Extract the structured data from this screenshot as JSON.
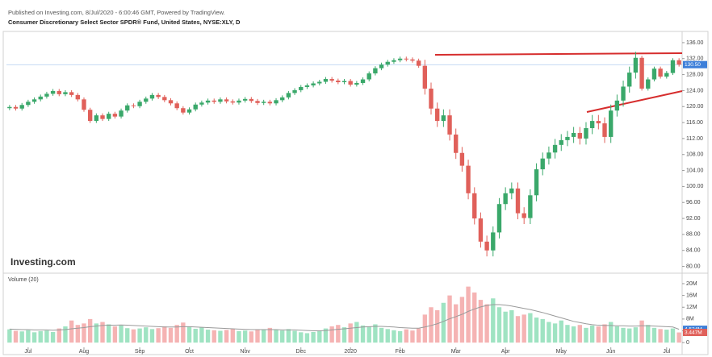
{
  "header": "Published on Investing.com, 8/Jul/2020 - 6:00:46 GMT, Powered by TradingView.",
  "logo": "Investing.com",
  "chart_data": [
    {
      "type": "candlestick",
      "title": "Consumer Discretionary Select Sector SPDR® Fund, United States, NYSE:XLY, D",
      "categories": [
        null,
        null,
        null,
        "Jul",
        null,
        null,
        null,
        null,
        null,
        null,
        null,
        null,
        "Aug",
        null,
        null,
        null,
        null,
        null,
        null,
        null,
        null,
        "Sep",
        null,
        null,
        null,
        null,
        null,
        null,
        null,
        "Oct",
        null,
        null,
        null,
        null,
        null,
        null,
        null,
        null,
        "Nov",
        null,
        null,
        null,
        null,
        null,
        null,
        null,
        null,
        "Dec",
        null,
        null,
        null,
        null,
        null,
        null,
        null,
        "2020",
        null,
        null,
        null,
        null,
        null,
        null,
        null,
        "Feb",
        null,
        null,
        null,
        null,
        null,
        null,
        null,
        null,
        "Mar",
        null,
        null,
        null,
        null,
        null,
        null,
        null,
        "Apr",
        null,
        null,
        null,
        null,
        null,
        null,
        null,
        null,
        "May",
        null,
        null,
        null,
        null,
        null,
        null,
        null,
        "Jun",
        null,
        null,
        null,
        null,
        null,
        null,
        null,
        null,
        "Jul",
        null,
        null
      ],
      "open": [
        119.6,
        119.9,
        119.5,
        120.4,
        121.2,
        121.8,
        122.5,
        123.2,
        123.9,
        123.1,
        123.6,
        122.9,
        121.8,
        119.2,
        116.4,
        117.8,
        116.9,
        118.2,
        117.5,
        119.0,
        120.3,
        120.1,
        121.2,
        122.0,
        122.9,
        122.4,
        121.6,
        120.8,
        119.6,
        118.5,
        119.3,
        120.5,
        121.0,
        121.5,
        121.2,
        121.8,
        121.3,
        121.0,
        121.5,
        121.9,
        121.4,
        120.9,
        121.2,
        120.8,
        121.6,
        122.3,
        123.4,
        124.1,
        124.9,
        125.3,
        125.8,
        126.2,
        126.9,
        126.5,
        126.1,
        126.4,
        125.5,
        125.9,
        126.8,
        128.3,
        129.6,
        130.5,
        131.2,
        131.6,
        132.0,
        131.8,
        131.5,
        130.2,
        124.5,
        119.5,
        116.4,
        117.8,
        113.0,
        108.4,
        105.2,
        98.3,
        92.0,
        86.2,
        84.0,
        88.5,
        95.6,
        98.3,
        99.5,
        93.3,
        92.1,
        97.8,
        104.3,
        107.0,
        108.5,
        110.4,
        111.6,
        112.4,
        113.4,
        112.0,
        114.6,
        116.4,
        115.8,
        112.4,
        119.0,
        121.5,
        125.0,
        128.5,
        132.2,
        124.5,
        126.8,
        129.5,
        127.5,
        128.4,
        131.6
      ],
      "high": [
        120.4,
        120.4,
        120.9,
        121.7,
        122.3,
        123.0,
        123.7,
        124.4,
        124.4,
        124.1,
        124.1,
        123.4,
        122.3,
        119.7,
        118.3,
        118.3,
        118.7,
        118.7,
        119.5,
        120.8,
        120.8,
        121.7,
        122.5,
        123.4,
        123.4,
        122.9,
        122.1,
        121.3,
        120.1,
        119.8,
        121.0,
        121.5,
        122.0,
        122.0,
        122.3,
        122.3,
        121.8,
        122.0,
        122.4,
        122.4,
        121.9,
        121.7,
        121.7,
        122.1,
        122.8,
        123.9,
        124.6,
        125.4,
        125.8,
        126.3,
        126.7,
        127.4,
        127.4,
        127.0,
        126.9,
        126.9,
        126.4,
        127.3,
        128.8,
        130.1,
        131.0,
        131.7,
        132.1,
        132.5,
        132.5,
        132.3,
        132.0,
        131.7,
        126.0,
        121.0,
        119.3,
        119.3,
        114.5,
        109.9,
        106.7,
        99.8,
        93.5,
        87.7,
        90.0,
        97.1,
        99.8,
        101.0,
        101.0,
        94.8,
        99.3,
        105.8,
        108.5,
        110.0,
        111.9,
        113.1,
        113.9,
        114.9,
        114.9,
        116.1,
        117.9,
        117.9,
        117.3,
        120.5,
        123.0,
        126.5,
        130.0,
        133.7,
        132.7,
        127.3,
        130.0,
        130.0,
        128.9,
        132.1,
        132.1
      ],
      "low": [
        119.1,
        119.0,
        119.0,
        119.9,
        120.7,
        121.3,
        122.0,
        122.7,
        122.6,
        122.6,
        122.4,
        121.3,
        118.7,
        115.9,
        115.9,
        116.4,
        116.4,
        117.0,
        117.0,
        118.5,
        119.6,
        119.6,
        120.7,
        121.5,
        121.9,
        121.1,
        120.3,
        119.1,
        118.0,
        118.0,
        118.8,
        120.0,
        120.5,
        120.7,
        120.7,
        120.8,
        120.5,
        120.5,
        121.0,
        120.9,
        120.4,
        120.4,
        120.3,
        120.3,
        121.1,
        121.8,
        122.9,
        123.6,
        124.4,
        124.8,
        125.3,
        125.7,
        126.0,
        125.6,
        125.6,
        125.0,
        125.0,
        125.4,
        126.3,
        127.8,
        129.1,
        130.0,
        130.7,
        131.1,
        131.3,
        131.0,
        129.7,
        123.0,
        118.0,
        114.9,
        114.9,
        111.5,
        106.9,
        103.7,
        96.8,
        90.5,
        84.7,
        82.5,
        82.5,
        87.0,
        94.1,
        96.8,
        91.8,
        90.6,
        90.6,
        96.3,
        102.8,
        105.5,
        107.0,
        108.9,
        110.1,
        110.9,
        110.5,
        110.5,
        113.1,
        114.3,
        110.9,
        110.9,
        117.5,
        120.0,
        123.5,
        127.0,
        124.0,
        124.0,
        126.3,
        127.0,
        127.0,
        127.9,
        130.0
      ],
      "close": [
        119.9,
        119.5,
        120.4,
        121.2,
        121.8,
        122.5,
        123.2,
        123.9,
        123.1,
        123.6,
        122.9,
        121.8,
        119.2,
        116.4,
        117.8,
        116.9,
        118.2,
        117.5,
        119.0,
        120.3,
        120.1,
        121.2,
        122.0,
        122.9,
        122.4,
        121.6,
        120.8,
        119.6,
        118.5,
        119.3,
        120.5,
        121.0,
        121.5,
        121.2,
        121.8,
        121.3,
        121.0,
        121.5,
        121.9,
        121.4,
        120.9,
        121.2,
        120.8,
        121.6,
        122.3,
        123.4,
        124.1,
        124.9,
        125.3,
        125.8,
        126.2,
        126.9,
        126.5,
        126.1,
        126.4,
        125.5,
        125.9,
        126.8,
        128.3,
        129.6,
        130.5,
        131.2,
        131.6,
        132.0,
        131.8,
        131.5,
        130.2,
        124.5,
        119.5,
        116.4,
        117.8,
        113.0,
        108.4,
        105.2,
        98.3,
        92.0,
        86.2,
        84.0,
        88.5,
        95.6,
        98.3,
        99.5,
        93.3,
        92.1,
        97.8,
        104.3,
        107.0,
        108.5,
        110.4,
        111.6,
        112.4,
        113.4,
        112.0,
        114.6,
        116.4,
        115.8,
        112.4,
        119.0,
        121.5,
        125.0,
        128.5,
        132.2,
        124.5,
        126.8,
        129.5,
        127.5,
        128.4,
        131.6,
        130.5
      ],
      "last_label": "130.50",
      "colors": {
        "up": "#3aa86a",
        "down": "#e0605a",
        "last": "#3d7fd9"
      },
      "ylim": [
        78.5,
        138
      ],
      "yticks": [
        {
          "value": 80,
          "label": "80.00"
        },
        {
          "value": 84,
          "label": "84.00"
        },
        {
          "value": 88,
          "label": "88.00"
        },
        {
          "value": 92,
          "label": "92.00"
        },
        {
          "value": 96,
          "label": "96.00"
        },
        {
          "value": 100,
          "label": "100.00"
        },
        {
          "value": 104,
          "label": "104.00"
        },
        {
          "value": 108,
          "label": "108.00"
        },
        {
          "value": 112,
          "label": "112.00"
        },
        {
          "value": 116,
          "label": "116.00"
        },
        {
          "value": 120,
          "label": "120.00"
        },
        {
          "value": 124,
          "label": "124.00"
        },
        {
          "value": 128,
          "label": "128.00"
        },
        {
          "value": 132,
          "label": "132.00"
        },
        {
          "value": 136,
          "label": "136.00"
        }
      ]
    },
    {
      "type": "bar",
      "title": "Volume (20)",
      "values": [
        4.5,
        4.0,
        3.8,
        4.2,
        3.5,
        3.9,
        4.1,
        3.6,
        4.8,
        5.5,
        7.5,
        6.0,
        6.5,
        8.0,
        6.5,
        7.0,
        6.2,
        5.5,
        5.8,
        4.9,
        4.5,
        4.8,
        5.2,
        4.6,
        4.9,
        5.5,
        5.0,
        6.0,
        6.8,
        5.5,
        4.7,
        5.1,
        4.4,
        4.2,
        4.0,
        4.3,
        4.6,
        3.9,
        4.1,
        3.8,
        4.5,
        4.3,
        5.0,
        4.4,
        4.1,
        4.6,
        4.0,
        3.5,
        3.2,
        3.6,
        4.0,
        4.8,
        5.5,
        6.0,
        5.2,
        6.5,
        7.0,
        5.8,
        5.5,
        6.2,
        5.0,
        4.6,
        4.2,
        3.9,
        4.5,
        4.1,
        4.8,
        9.5,
        12.0,
        11.0,
        13.5,
        16.0,
        13.0,
        15.5,
        19.0,
        17.0,
        14.5,
        13.0,
        15.0,
        12.0,
        10.5,
        11.0,
        9.0,
        9.5,
        10.0,
        8.5,
        8.0,
        7.0,
        6.5,
        7.5,
        6.0,
        5.5,
        6.0,
        5.0,
        5.8,
        5.5,
        6.2,
        7.0,
        5.5,
        5.0,
        4.8,
        5.2,
        7.5,
        6.0,
        5.0,
        4.6,
        4.4,
        4.8,
        3.447
      ],
      "ma": [
        4.6,
        4.5,
        4.4,
        4.4,
        4.3,
        4.3,
        4.3,
        4.2,
        4.3,
        4.4,
        4.7,
        4.9,
        5.1,
        5.4,
        5.6,
        5.8,
        5.9,
        5.9,
        6.0,
        5.9,
        5.8,
        5.7,
        5.6,
        5.5,
        5.4,
        5.3,
        5.3,
        5.3,
        5.4,
        5.4,
        5.3,
        5.2,
        5.1,
        5.0,
        4.9,
        4.8,
        4.7,
        4.6,
        4.5,
        4.4,
        4.4,
        4.4,
        4.4,
        4.4,
        4.3,
        4.3,
        4.3,
        4.2,
        4.1,
        4.0,
        4.0,
        4.1,
        4.3,
        4.5,
        4.7,
        4.9,
        5.1,
        5.3,
        5.4,
        5.5,
        5.5,
        5.4,
        5.3,
        5.1,
        5.0,
        4.9,
        4.9,
        5.3,
        5.8,
        6.4,
        7.2,
        8.1,
        8.8,
        9.6,
        10.6,
        11.4,
        12.1,
        12.6,
        12.9,
        12.9,
        12.7,
        12.4,
        12.0,
        11.6,
        11.2,
        10.7,
        10.2,
        9.6,
        9.0,
        8.4,
        7.8,
        7.2,
        6.8,
        6.4,
        6.1,
        5.9,
        5.8,
        5.8,
        5.7,
        5.7,
        5.6,
        5.6,
        5.7,
        5.7,
        5.6,
        5.5,
        5.4,
        5.3,
        4.524
      ],
      "last_label": "3.447M",
      "ma_last_label": "4.524M",
      "colors": {
        "up": "#9fe3c2",
        "down": "#f5b3b3",
        "ma": "#9a9a9a",
        "ma_tag": "#3d7fd9",
        "last": "#e0605a"
      },
      "ylim": [
        -1.6,
        23
      ],
      "yticks": [
        0,
        {
          "value": 4,
          "label": "4M"
        },
        {
          "value": 8,
          "label": "8M"
        },
        {
          "value": 12,
          "label": "12M"
        },
        {
          "value": 16,
          "label": "16M"
        },
        {
          "value": 20,
          "label": "20M"
        }
      ]
    }
  ]
}
